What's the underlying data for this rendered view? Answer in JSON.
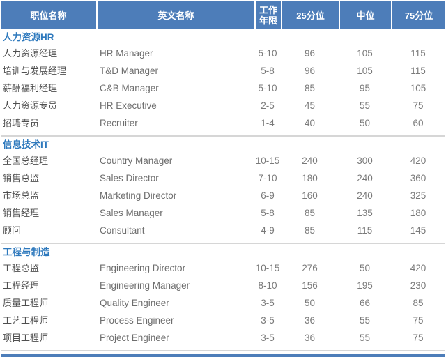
{
  "colors": {
    "header_bg": "#4d7db9",
    "header_text": "#ffffff",
    "section_title": "#2e79bd",
    "chinese_text": "#4f4f4f",
    "english_text": "#6e6e6e",
    "number_text": "#7a7a7a",
    "divider": "#d6d6d6"
  },
  "table": {
    "columns": [
      {
        "label": "职位名称"
      },
      {
        "label": "英文名称"
      },
      {
        "label": "工作年限"
      },
      {
        "label": "25分位"
      },
      {
        "label": "中位"
      },
      {
        "label": "75分位"
      }
    ],
    "sections": [
      {
        "title": "人力资源HR",
        "rows": [
          [
            "人力资源经理",
            "HR Manager",
            "5-10",
            "96",
            "105",
            "115"
          ],
          [
            "培训与发展经理",
            "T&D Manager",
            "5-8",
            "96",
            "105",
            "115"
          ],
          [
            "薪酬福利经理",
            "C&B Manager",
            "5-10",
            "85",
            "95",
            "105"
          ],
          [
            "人力资源专员",
            "HR Executive",
            "2-5",
            "45",
            "55",
            "75"
          ],
          [
            "招聘专员",
            "Recruiter",
            "1-4",
            "40",
            "50",
            "60"
          ]
        ]
      },
      {
        "title": "信息技术IT",
        "rows": [
          [
            "全国总经理",
            "Country Manager",
            "10-15",
            "240",
            "300",
            "420"
          ],
          [
            "销售总监",
            "Sales Director",
            "7-10",
            "180",
            "240",
            "360"
          ],
          [
            "市场总监",
            "Marketing Director",
            "6-9",
            "160",
            "240",
            "325"
          ],
          [
            "销售经理",
            "Sales Manager",
            "5-8",
            "85",
            "135",
            "180"
          ],
          [
            "顾问",
            "Consultant",
            "4-9",
            "85",
            "115",
            "145"
          ]
        ]
      },
      {
        "title": "工程与制造",
        "rows": [
          [
            "工程总监",
            "Engineering Director",
            "10-15",
            "276",
            "50",
            "420"
          ],
          [
            "工程经理",
            "Engineering Manager",
            "8-10",
            "156",
            "195",
            "230"
          ],
          [
            "质量工程师",
            "Quality Engineer",
            "3-5",
            "50",
            "66",
            "85"
          ],
          [
            "工艺工程师",
            "Process Engineer",
            "3-5",
            "36",
            "55",
            "75"
          ],
          [
            "项目工程师",
            "Project Engineer",
            "3-5",
            "36",
            "55",
            "75"
          ]
        ]
      }
    ]
  }
}
